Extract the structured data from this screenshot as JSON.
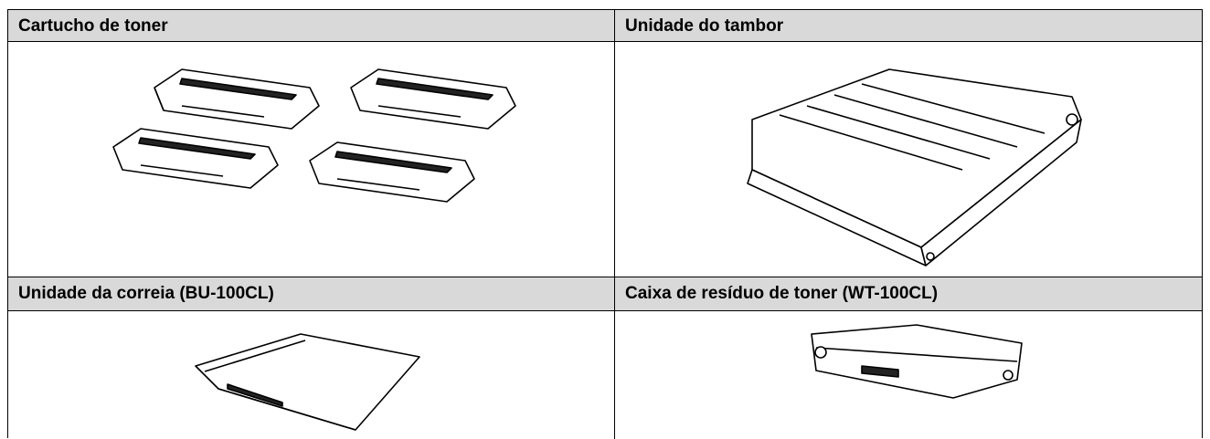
{
  "table": {
    "rows": [
      [
        "Cartucho de toner",
        "Unidade do tambor"
      ],
      [
        "Unidade da correia (BU-100CL)",
        "Caixa de resíduo de toner (WT-100CL)"
      ]
    ]
  }
}
